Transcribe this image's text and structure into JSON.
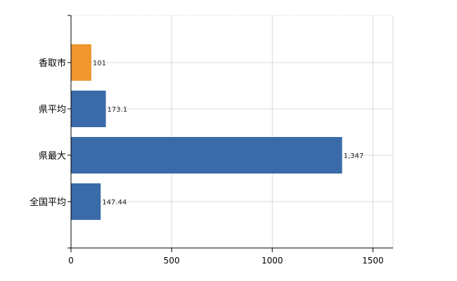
{
  "chart_data": {
    "type": "bar",
    "orientation": "horizontal",
    "categories": [
      "香取市",
      "県平均",
      "県最大",
      "全国平均"
    ],
    "values": [
      101,
      173.1,
      1347,
      147.44
    ],
    "value_labels": [
      "101",
      "173.1",
      "1,347",
      "147.44"
    ],
    "bar_colors": [
      "#f0962e",
      "#3a6aa8",
      "#3a6aa8",
      "#3a6aa8"
    ],
    "xlim": [
      0,
      1600
    ],
    "xticks": [
      0,
      500,
      1000,
      1500
    ],
    "xtick_labels": [
      "0",
      "500",
      "1000",
      "1500"
    ],
    "grid": true,
    "title": "",
    "xlabel": "",
    "ylabel": ""
  }
}
